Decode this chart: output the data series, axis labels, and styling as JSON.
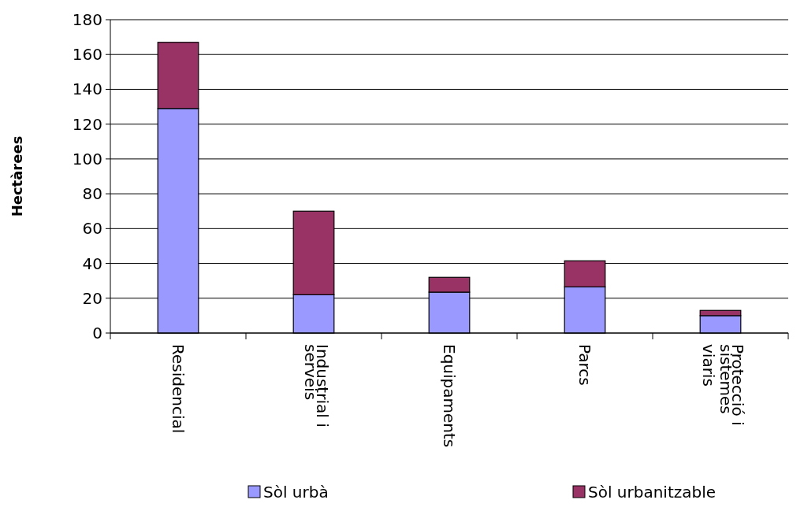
{
  "chart_data": {
    "type": "bar",
    "stacked": true,
    "ylabel": "Hectàrees",
    "categories": [
      "Residencial",
      "Industrial i serveis",
      "Equipaments",
      "Parcs",
      "Protecció i sistemes viaris"
    ],
    "series": [
      {
        "name": "Sòl urbà",
        "color": "#9999ff",
        "values": [
          129,
          22,
          23.5,
          26.5,
          10
        ]
      },
      {
        "name": "Sòl urbanitzable",
        "color": "#993366",
        "values": [
          38,
          48,
          8.5,
          15,
          3
        ]
      }
    ],
    "ylim": [
      0,
      180
    ],
    "yticks": [
      0,
      20,
      40,
      60,
      80,
      100,
      120,
      140,
      160,
      180
    ],
    "grid": "y",
    "legend": "bottom"
  }
}
